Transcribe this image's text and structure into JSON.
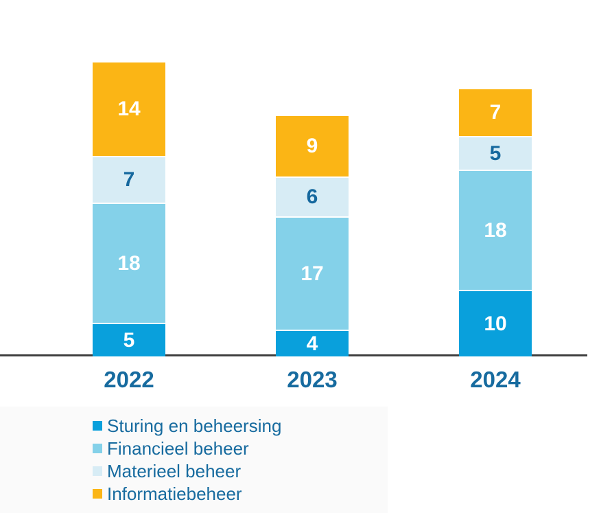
{
  "chart_data": {
    "type": "bar",
    "stacked": true,
    "title": "",
    "xlabel": "",
    "ylabel": "",
    "categories": [
      "2022",
      "2023",
      "2024"
    ],
    "series": [
      {
        "name": "Sturing en beheersing",
        "values": [
          5,
          4,
          10
        ],
        "color": "#09a0dc",
        "label_color": "#ffffff"
      },
      {
        "name": "Financieel beheer",
        "values": [
          18,
          17,
          18
        ],
        "color": "#84d1e9",
        "label_color": "#ffffff"
      },
      {
        "name": "Materieel beheer",
        "values": [
          7,
          6,
          5
        ],
        "color": "#d7ecf5",
        "label_color": "#15689e"
      },
      {
        "name": "Informatiebeheer",
        "values": [
          14,
          9,
          7
        ],
        "color": "#fbb515",
        "label_color": "#ffffff"
      }
    ],
    "ylim": [
      0,
      44
    ],
    "grid": false,
    "value_labels_shown": true,
    "legend_position": "bottom-left",
    "colors": {
      "axis_line": "#3f3f3f",
      "tick_text": "#176b9f",
      "legend_text": "#176b9f",
      "legend_background": "#fafafa"
    }
  }
}
